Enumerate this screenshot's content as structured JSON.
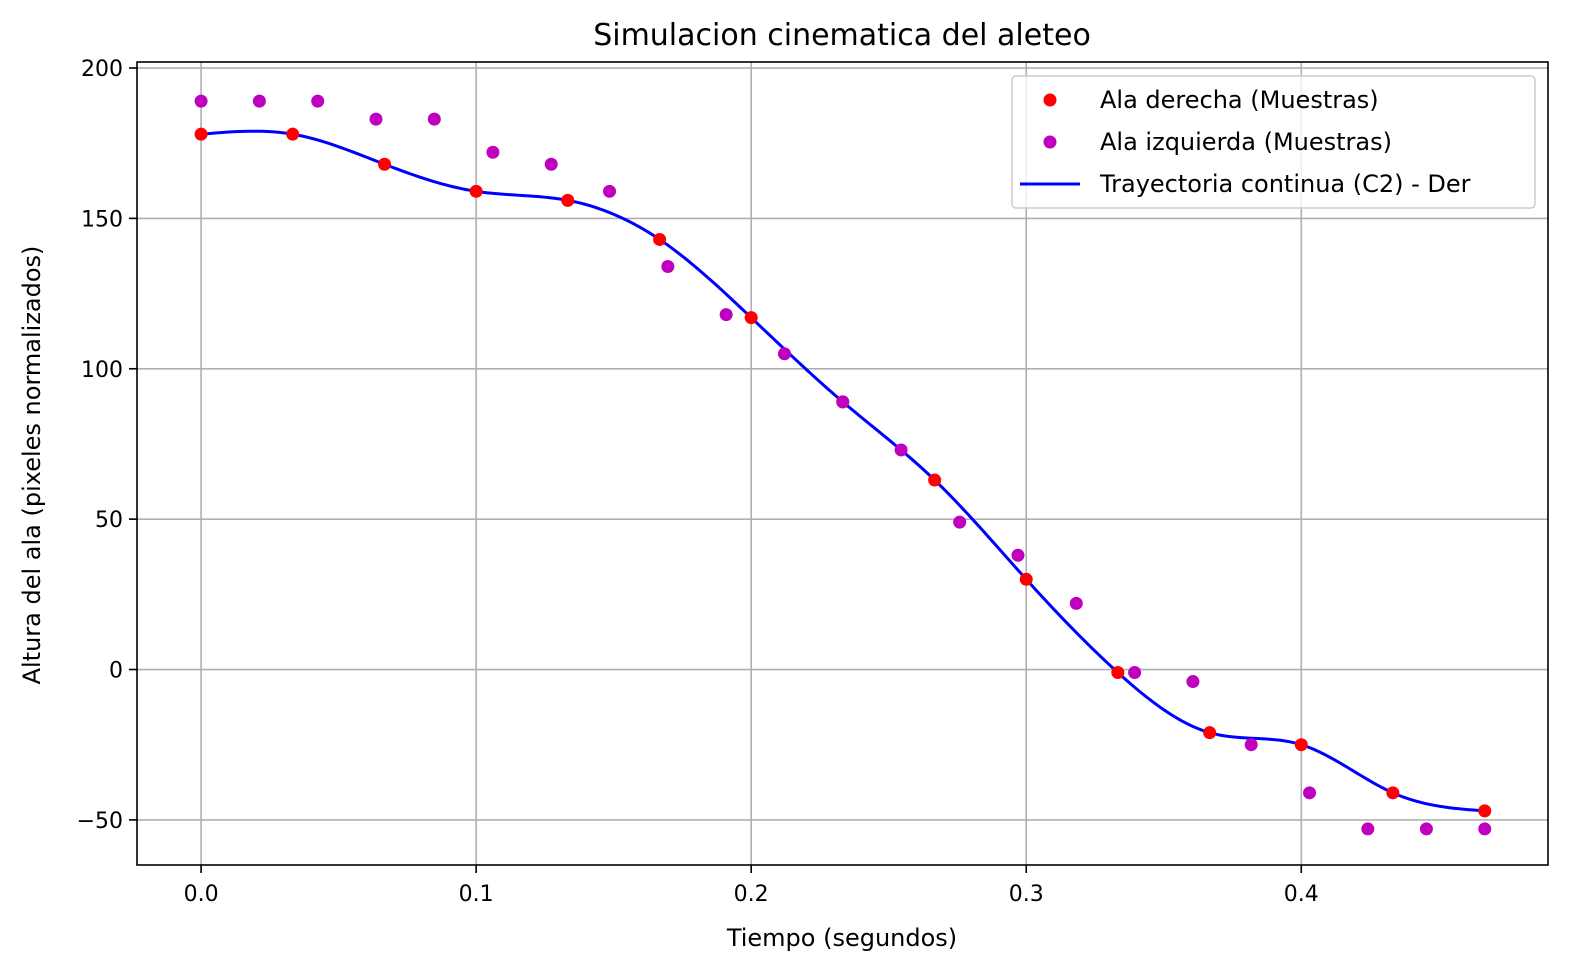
{
  "chart_data": {
    "type": "scatter",
    "title": "Simulacion cinematica del aleteo",
    "xlabel": "Tiempo (segundos)",
    "ylabel": "Altura del ala (pixeles normalizados)",
    "xlim": [
      -0.0233,
      0.4897
    ],
    "ylim": [
      -65,
      202
    ],
    "xticks": [
      0.0,
      0.1,
      0.2,
      0.3,
      0.4
    ],
    "xtick_labels": [
      "0.0",
      "0.1",
      "0.2",
      "0.3",
      "0.4"
    ],
    "yticks": [
      -50,
      0,
      50,
      100,
      150,
      200
    ],
    "ytick_labels": [
      "−50",
      "0",
      "50",
      "100",
      "150",
      "200"
    ],
    "grid": true,
    "legend_position": "top-right",
    "series": [
      {
        "name": "Ala derecha (Muestras)",
        "kind": "points",
        "color": "#ff0000",
        "x": [
          0.0,
          0.0333,
          0.0667,
          0.1,
          0.1333,
          0.1667,
          0.2,
          0.2333,
          0.2667,
          0.3,
          0.3333,
          0.3667,
          0.4,
          0.4333,
          0.4667
        ],
        "y": [
          178,
          178,
          168,
          159,
          156,
          143,
          117,
          89,
          63,
          30,
          -1,
          -21,
          -25,
          -41,
          -47
        ]
      },
      {
        "name": "Ala izquierda (Muestras)",
        "kind": "points",
        "color": "#bf00bf",
        "x": [
          0.0,
          0.0212,
          0.0424,
          0.0636,
          0.0848,
          0.1061,
          0.1273,
          0.1485,
          0.1697,
          0.1909,
          0.2121,
          0.2333,
          0.2545,
          0.2758,
          0.297,
          0.3182,
          0.3394,
          0.3606,
          0.3818,
          0.403,
          0.4242,
          0.4455,
          0.4667
        ],
        "y": [
          189,
          189,
          189,
          183,
          183,
          172,
          168,
          159,
          134,
          118,
          105,
          89,
          73,
          49,
          38,
          22,
          -1,
          -4,
          -25,
          -41,
          -53,
          -53,
          -53
        ]
      },
      {
        "name": "Trayectoria continua (C2) - Der",
        "kind": "line",
        "color": "#0000ff",
        "x": [
          0.0,
          0.0333,
          0.0667,
          0.1,
          0.1333,
          0.1667,
          0.2,
          0.2333,
          0.2667,
          0.3,
          0.3333,
          0.3667,
          0.4,
          0.4333,
          0.4667
        ],
        "y": [
          178,
          178,
          168,
          159,
          156,
          143,
          117,
          89,
          63,
          30,
          -1,
          -21,
          -25,
          -41,
          -47
        ]
      }
    ]
  }
}
